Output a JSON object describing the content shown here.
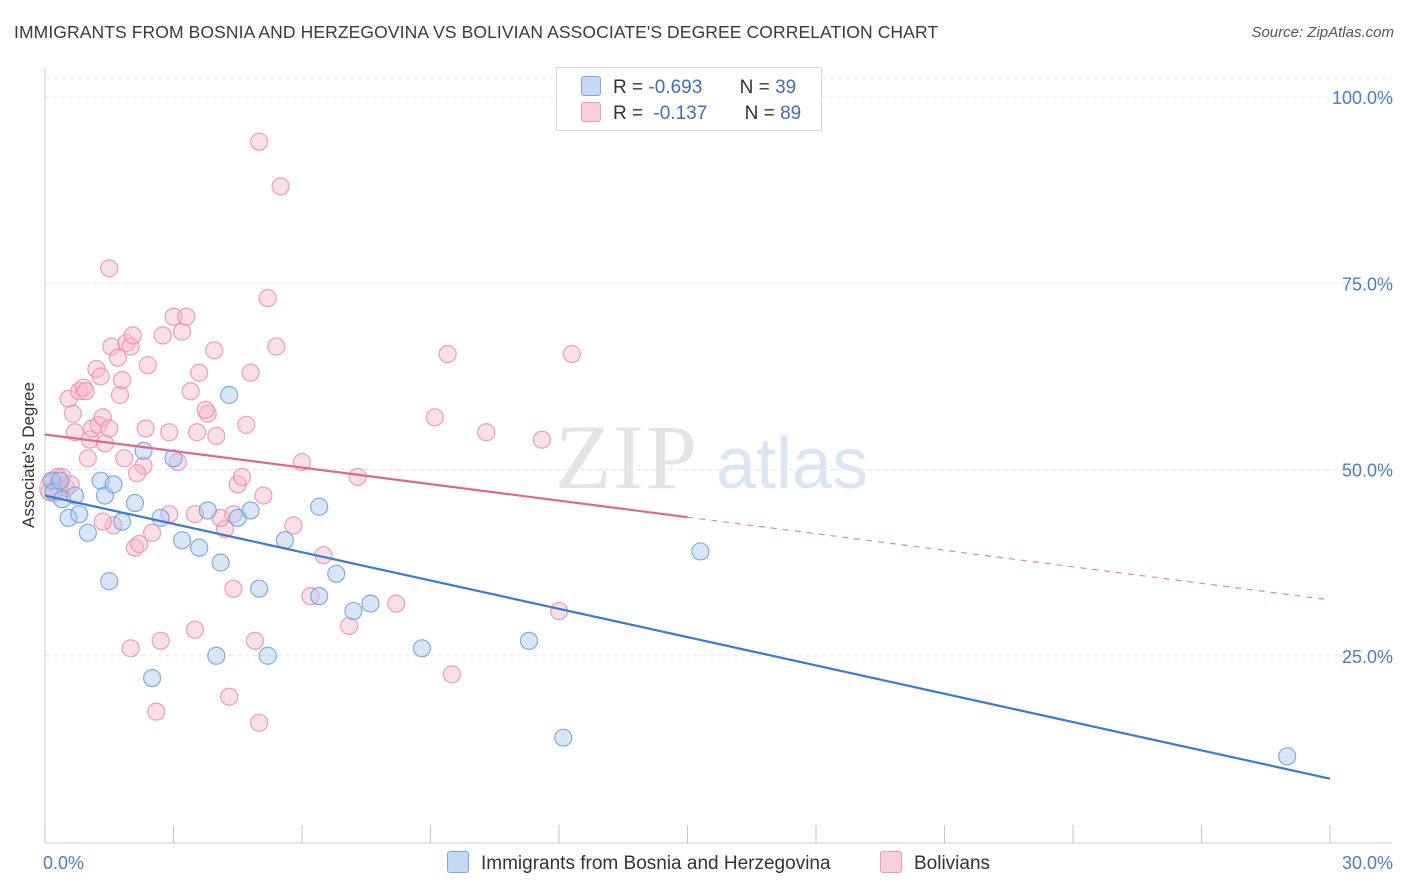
{
  "title": "IMMIGRANTS FROM BOSNIA AND HERZEGOVINA VS BOLIVIAN ASSOCIATE'S DEGREE CORRELATION CHART",
  "source": "Source: ZipAtlas.com",
  "watermark": {
    "zip": "ZIP",
    "atlas": "atlas"
  },
  "colors": {
    "blue_fill": "#a9c8ef",
    "blue_stroke": "#6f9fdc",
    "blue_line": "#3b78d8",
    "pink_fill": "#f6b8cb",
    "pink_stroke": "#ea8fab",
    "pink_line": "#e06690"
  },
  "legend": {
    "r_label": "R =",
    "n_label": "N =",
    "blue": {
      "r": "-0.693",
      "n": "39"
    },
    "pink": {
      "r": "-0.137",
      "n": "89"
    }
  },
  "bottom_legend": {
    "blue": "Immigrants from Bosnia and Herzegovina",
    "pink": "Bolivians"
  },
  "chart_data": {
    "type": "scatter",
    "xlabel": "",
    "ylabel": "Associate's Degree",
    "xlim": [
      0,
      30
    ],
    "ylim": [
      0,
      105
    ],
    "x_tick_labels": [
      "0.0%",
      "30.0%"
    ],
    "y_tick_labels": [
      "100.0%",
      "75.0%",
      "50.0%",
      "25.0%"
    ],
    "y_tick_values": [
      100,
      75,
      50,
      25
    ],
    "series": [
      {
        "name": "Immigrants from Bosnia and Herzegovina",
        "color": "blue",
        "trend": {
          "x0": 0,
          "y0": 46.5,
          "x1": 30,
          "y1": 8.5
        },
        "points": [
          [
            0.15,
            48.5
          ],
          [
            0.2,
            47
          ],
          [
            0.35,
            48.5
          ],
          [
            0.4,
            46
          ],
          [
            0.55,
            43.5
          ],
          [
            0.7,
            46.5
          ],
          [
            0.8,
            44
          ],
          [
            1.0,
            41.5
          ],
          [
            1.3,
            48.5
          ],
          [
            1.4,
            46.5
          ],
          [
            1.5,
            35
          ],
          [
            1.6,
            48
          ],
          [
            1.8,
            43
          ],
          [
            2.1,
            45.5
          ],
          [
            2.3,
            52.5
          ],
          [
            2.7,
            43.5
          ],
          [
            3.0,
            51.5
          ],
          [
            3.2,
            40.5
          ],
          [
            3.6,
            39.5
          ],
          [
            3.8,
            44.5
          ],
          [
            4.0,
            25
          ],
          [
            4.1,
            37.5
          ],
          [
            4.3,
            60
          ],
          [
            4.5,
            43.5
          ],
          [
            4.8,
            44.5
          ],
          [
            5.0,
            34
          ],
          [
            5.2,
            25
          ],
          [
            5.6,
            40.5
          ],
          [
            6.4,
            33
          ],
          [
            6.8,
            36
          ],
          [
            6.4,
            45
          ],
          [
            7.2,
            31
          ],
          [
            7.6,
            32
          ],
          [
            8.8,
            26
          ],
          [
            11.3,
            27
          ],
          [
            12.1,
            14
          ],
          [
            15.3,
            39
          ],
          [
            29.0,
            11.5
          ],
          [
            2.5,
            22
          ]
        ]
      },
      {
        "name": "Bolivians",
        "color": "pink",
        "trend": {
          "x0": 0,
          "y0": 54.7,
          "x1": 15,
          "y1": 43.6,
          "dash_x1": 30,
          "dash_y1": 32.5
        },
        "points": [
          [
            0.1,
            47
          ],
          [
            0.2,
            48.5
          ],
          [
            0.3,
            49
          ],
          [
            0.4,
            49
          ],
          [
            0.5,
            47.5
          ],
          [
            0.55,
            59.5
          ],
          [
            0.65,
            57.5
          ],
          [
            0.7,
            55
          ],
          [
            0.8,
            60.5
          ],
          [
            0.9,
            61
          ],
          [
            1.0,
            51.5
          ],
          [
            1.05,
            54
          ],
          [
            1.1,
            55.5
          ],
          [
            1.2,
            63.5
          ],
          [
            1.25,
            56
          ],
          [
            1.3,
            62.5
          ],
          [
            1.35,
            57
          ],
          [
            1.4,
            53.5
          ],
          [
            1.5,
            55.5
          ],
          [
            1.55,
            66.5
          ],
          [
            1.6,
            42.5
          ],
          [
            1.7,
            65
          ],
          [
            1.75,
            60
          ],
          [
            1.8,
            62
          ],
          [
            1.85,
            51.5
          ],
          [
            1.9,
            67
          ],
          [
            2.0,
            66.5
          ],
          [
            2.05,
            68
          ],
          [
            2.1,
            39.5
          ],
          [
            2.2,
            40
          ],
          [
            2.3,
            50.5
          ],
          [
            2.35,
            55.5
          ],
          [
            2.4,
            64
          ],
          [
            2.5,
            41.5
          ],
          [
            2.6,
            17.5
          ],
          [
            2.7,
            27
          ],
          [
            2.75,
            68
          ],
          [
            2.9,
            55
          ],
          [
            3.0,
            70.5
          ],
          [
            3.1,
            51
          ],
          [
            3.2,
            68.5
          ],
          [
            3.3,
            70.5
          ],
          [
            3.4,
            60.5
          ],
          [
            3.5,
            28.5
          ],
          [
            3.55,
            55
          ],
          [
            3.6,
            63
          ],
          [
            3.8,
            57.5
          ],
          [
            3.95,
            66
          ],
          [
            4.0,
            54.5
          ],
          [
            4.2,
            42
          ],
          [
            4.3,
            19.5
          ],
          [
            4.4,
            34
          ],
          [
            4.5,
            48
          ],
          [
            4.6,
            49
          ],
          [
            4.7,
            56
          ],
          [
            4.8,
            63
          ],
          [
            4.9,
            27
          ],
          [
            5.0,
            16
          ],
          [
            5.1,
            46.5
          ],
          [
            5.2,
            73
          ],
          [
            5.4,
            66.5
          ],
          [
            5.8,
            42.5
          ],
          [
            6.0,
            51
          ],
          [
            6.2,
            33
          ],
          [
            6.5,
            38.5
          ],
          [
            7.1,
            29
          ],
          [
            7.3,
            49
          ],
          [
            8.2,
            32
          ],
          [
            9.1,
            57
          ],
          [
            9.4,
            65.5
          ],
          [
            9.5,
            22.5
          ],
          [
            10.3,
            55
          ],
          [
            11.6,
            54
          ],
          [
            12.0,
            31
          ],
          [
            12.3,
            65.5
          ],
          [
            5.0,
            94
          ],
          [
            5.5,
            88
          ],
          [
            1.5,
            77
          ],
          [
            3.5,
            44
          ],
          [
            4.1,
            43.5
          ],
          [
            2.0,
            26
          ],
          [
            0.3,
            47.5
          ],
          [
            0.6,
            48
          ],
          [
            4.4,
            44
          ],
          [
            2.9,
            44
          ],
          [
            1.35,
            43
          ],
          [
            0.95,
            60.5
          ],
          [
            2.15,
            49.5
          ],
          [
            3.75,
            58
          ]
        ]
      }
    ]
  }
}
